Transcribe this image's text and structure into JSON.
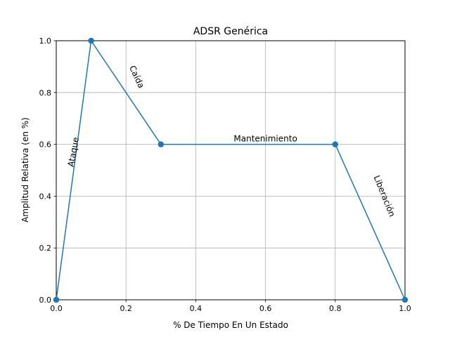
{
  "chart_data": {
    "type": "line",
    "title": "ADSR Genérica",
    "xlabel": "% De Tiempo En Un Estado",
    "ylabel": "Amplitud Relativa (en %)",
    "xlim": [
      0.0,
      1.0
    ],
    "ylim": [
      0.0,
      1.0
    ],
    "xticks": [
      "0.0",
      "0.2",
      "0.4",
      "0.6",
      "0.8",
      "1.0"
    ],
    "yticks": [
      "0.0",
      "0.2",
      "0.4",
      "0.6",
      "0.8",
      "1.0"
    ],
    "grid": true,
    "series": [
      {
        "x": [
          0.0,
          0.1,
          0.3,
          0.8,
          1.0
        ],
        "y": [
          0.0,
          1.0,
          0.6,
          0.6,
          0.0
        ],
        "color": "#1f77b4",
        "marker": "circle"
      }
    ],
    "annotations": [
      {
        "text": "Ataque",
        "x": 0.05,
        "y": 0.57,
        "rotation": -80
      },
      {
        "text": "Caída",
        "x": 0.23,
        "y": 0.86,
        "rotation": 65
      },
      {
        "text": "Mantenimiento",
        "x": 0.6,
        "y": 0.62,
        "rotation": 0
      },
      {
        "text": "Liberación",
        "x": 0.94,
        "y": 0.4,
        "rotation": 68
      }
    ]
  }
}
